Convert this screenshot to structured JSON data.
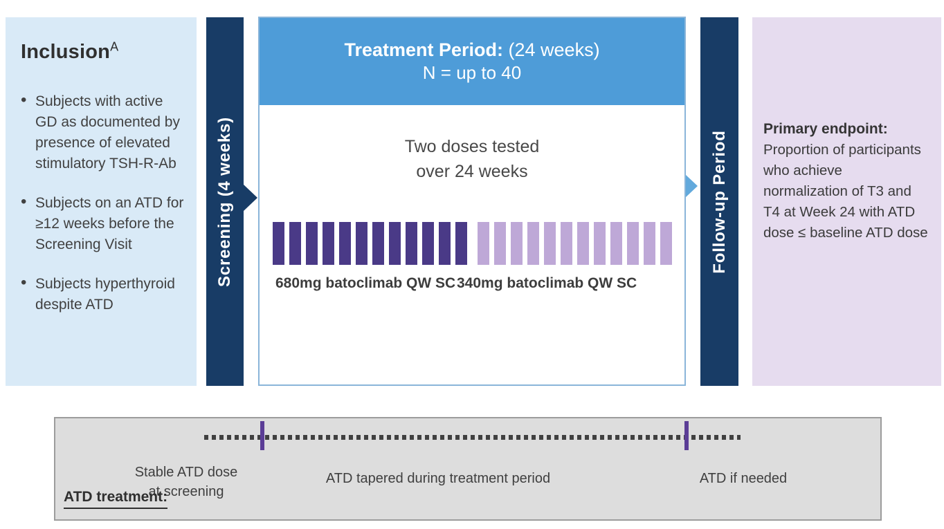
{
  "colors": {
    "light_blue_panel": "#d9eaf7",
    "navy_bar": "#183c66",
    "treatment_header_blue": "#4e9cd8",
    "treatment_border_blue": "#8ab5d9",
    "flow_arrow_blue": "#62a9dc",
    "dark_purple_bar": "#4a3a87",
    "light_purple_bar": "#bea8d7",
    "lavender_panel": "#e6dcef",
    "gray_panel": "#dddddd",
    "tick_purple": "#5b3d96",
    "dot_gray": "#404040"
  },
  "inclusion": {
    "title": "Inclusion",
    "superscript": "A",
    "bullets": [
      "Subjects with active GD as documented by presence of elevated stimulatory TSH-R-Ab",
      "Subjects on an ATD for ≥12 weeks before the Screening Visit",
      "Subjects hyperthyroid despite ATD"
    ]
  },
  "screening": {
    "label": "Screening (4 weeks)"
  },
  "treatment": {
    "title_bold": "Treatment Period:",
    "title_rest": "(24 weeks)",
    "subtitle": "N = up to 40",
    "body_line1": "Two doses tested",
    "body_line2": "over 24 weeks",
    "groups": [
      {
        "label": "680mg batoclimab QW SC",
        "bars": 12,
        "color": "#4a3a87"
      },
      {
        "label": "340mg batoclimab QW SC",
        "bars": 12,
        "color": "#bea8d7"
      }
    ],
    "total_weeks": 24
  },
  "followup": {
    "label": "Follow-up Period"
  },
  "endpoint": {
    "title": "Primary endpoint:",
    "body": "Proportion of participants who achieve normalization of T3 and T4 at Week 24 with ATD dose ≤ baseline ATD dose"
  },
  "atd": {
    "label": "ATD treatment:",
    "phase1_line1": "Stable ATD dose",
    "phase1_line2": "at screening",
    "phase2": "ATD tapered during treatment period",
    "phase3": "ATD if needed"
  }
}
